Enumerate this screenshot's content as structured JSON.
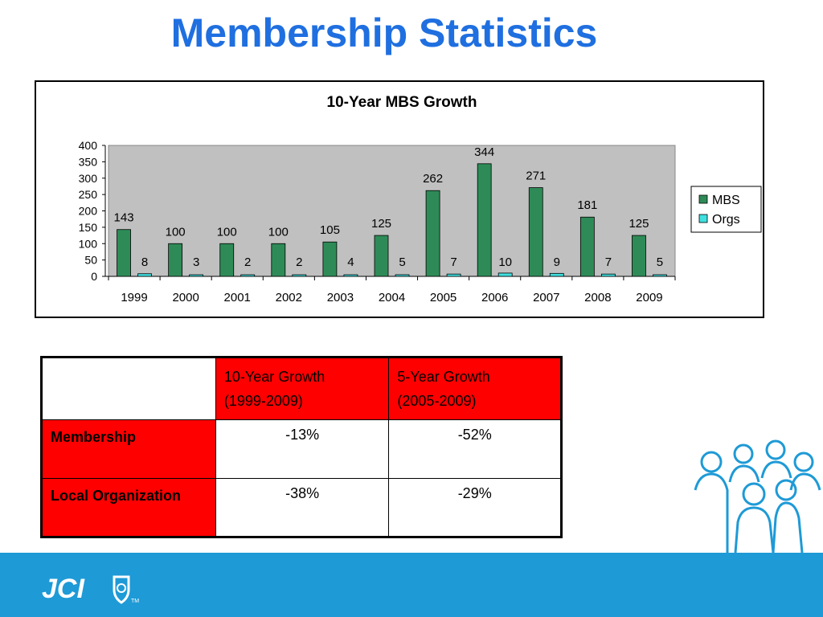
{
  "slide": {
    "title": "Membership Statistics"
  },
  "chart_data": {
    "type": "bar",
    "title": "10-Year MBS Growth",
    "categories": [
      "1999",
      "2000",
      "2001",
      "2002",
      "2003",
      "2004",
      "2005",
      "2006",
      "2007",
      "2008",
      "2009"
    ],
    "series": [
      {
        "name": "MBS",
        "values": [
          143,
          100,
          100,
          100,
          105,
          125,
          262,
          344,
          271,
          181,
          125
        ],
        "color": "#2e8b57"
      },
      {
        "name": "Orgs",
        "values": [
          8,
          3,
          2,
          2,
          4,
          5,
          7,
          10,
          9,
          7,
          5
        ],
        "color": "#40e0e0"
      }
    ],
    "ylim": [
      0,
      400
    ],
    "yticks": [
      0,
      50,
      100,
      150,
      200,
      250,
      300,
      350,
      400
    ],
    "xlabel": "",
    "ylabel": "",
    "legend": "right",
    "plot_background": "#c0c0c0",
    "data_labels": true
  },
  "table": {
    "header": {
      "blank": "",
      "col1_line1": "10-Year Growth",
      "col1_line2": "(1999-2009)",
      "col2_line1": "5-Year Growth",
      "col2_line2": "(2005-2009)"
    },
    "rows": [
      {
        "label": "Membership",
        "ten_year": "-13%",
        "five_year": "-52%"
      },
      {
        "label": "Local Organization",
        "ten_year": "-38%",
        "five_year": "-29%"
      }
    ]
  },
  "footer": {
    "logo_text": "JCI",
    "trademark": "TM",
    "bar_color": "#1e9ad6"
  }
}
